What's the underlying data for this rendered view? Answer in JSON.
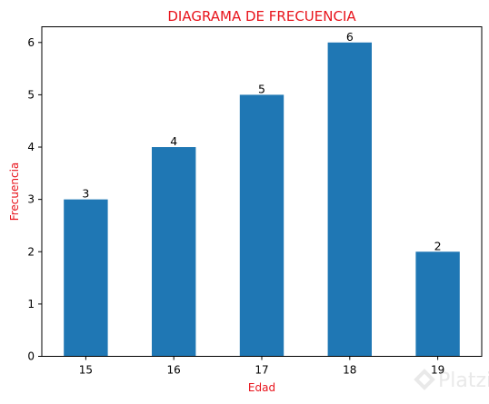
{
  "chart_data": {
    "type": "bar",
    "title": "DIAGRAMA DE FRECUENCIA",
    "xlabel": "Edad",
    "ylabel": "Frecuencia",
    "categories": [
      "15",
      "16",
      "17",
      "18",
      "19"
    ],
    "values": [
      3,
      4,
      5,
      6,
      2
    ],
    "data_labels": [
      "3",
      "4",
      "5",
      "6",
      "2"
    ],
    "ylim": [
      0,
      6.3
    ],
    "yticks": [
      "0",
      "1",
      "2",
      "3",
      "4",
      "5",
      "6"
    ],
    "grid": false,
    "legend": "none",
    "colors": {
      "bar": "#1f77b4",
      "title": "#e8141c",
      "axis_labels": "#e8141c",
      "axes": "#000000"
    }
  },
  "watermark": {
    "text": "Platzi",
    "icon": "platzi-logo-icon"
  }
}
